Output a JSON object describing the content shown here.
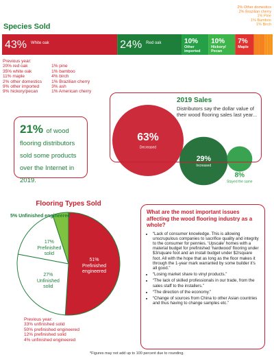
{
  "chart_data": [
    {
      "type": "stacked-bar",
      "title": "Species Sold",
      "categories": [
        "White oak",
        "Red oak",
        "Other imported",
        "Hickory/ Pecan",
        "Maple",
        "Other domestics",
        "Brazilian cherry",
        "Pine",
        "Bamboo",
        "Birch"
      ],
      "values": [
        43,
        24,
        10,
        10,
        7,
        2,
        2,
        1,
        1,
        1
      ],
      "value_labels": [
        "43%",
        "24%",
        "10%",
        "10%",
        "7%",
        "2%",
        "2%",
        "1%",
        "1%",
        "1%"
      ],
      "colors": [
        "#c8202f",
        "#1e7f3a",
        "#25a046",
        "#3db54a",
        "#e0322f",
        "#f58220",
        "#f58220",
        "#f7941d",
        "#f7941d",
        "#f7941d"
      ]
    },
    {
      "type": "bubble",
      "title": "2019 Sales",
      "subtitle": "Distributors say the dollar value of their wood flooring sales last year...",
      "categories": [
        "Decreased",
        "Increased",
        "Stayed the same"
      ],
      "values": [
        63,
        29,
        8
      ],
      "value_labels": [
        "63%",
        "29%",
        "8%"
      ],
      "colors": [
        "#c8202f",
        "#1e6b34",
        "#2e9e48"
      ]
    },
    {
      "type": "pie",
      "title": "Flooring Types Sold",
      "categories": [
        "Prefinished engineered",
        "Unfinished solid",
        "Prefinished solid",
        "Unfinished engineered"
      ],
      "values": [
        51,
        27,
        17,
        5
      ],
      "value_labels": [
        "51%",
        "27%",
        "17%",
        "5%"
      ],
      "colors": [
        "#c8202f",
        "#ffffff",
        "#ffffff",
        "#7fc241"
      ]
    }
  ],
  "species_previous_year": {
    "label": "Previous year:",
    "items": [
      "20% red oak",
      "35% white oak",
      "11% maple",
      "2% other domestics",
      "9% other imported",
      "9% hickory/pecan",
      "1% pine",
      "1% bamboo",
      "4% birch",
      "1% Brazilian cherry",
      "3% ash",
      "1% American cherry"
    ]
  },
  "internet_stat": {
    "value": "21%",
    "text": "of wood flooring distributors sold some products over the Internet in 2019."
  },
  "issues": {
    "question": "What are the most important issues affecting the wood flooring industry as a whole?",
    "quotes": [
      "“Lack of consumer knowledge. This is allowing unscrupulous companies to sacrifice quality and integrity to the consumer for pennies. ‘Upscale’ homes with a material budget for prefinished ‘hardwood’ flooring under $3/square foot and an install budget under $2/square foot. All with the hope that as long as the floor makes it through the 1-year mark warranted by some builder it’s all good.”",
      "“Losing market share to vinyl products.”",
      "“The lack of skilled professionals in our trade, from the sales staff to the installers.”",
      "“The direction of the economy.”",
      "“Change of sources from China to other Asian countries and thus having to change samples etc.”"
    ]
  },
  "flooring_previous_year": {
    "label": "Previous year:",
    "items": [
      "33% unfinished solid",
      "50% prefinished engineered",
      "12% prefinished solid",
      "4% unfinished engineered"
    ]
  },
  "footnote": "*Figures may not add up to 100 percent due to rounding."
}
